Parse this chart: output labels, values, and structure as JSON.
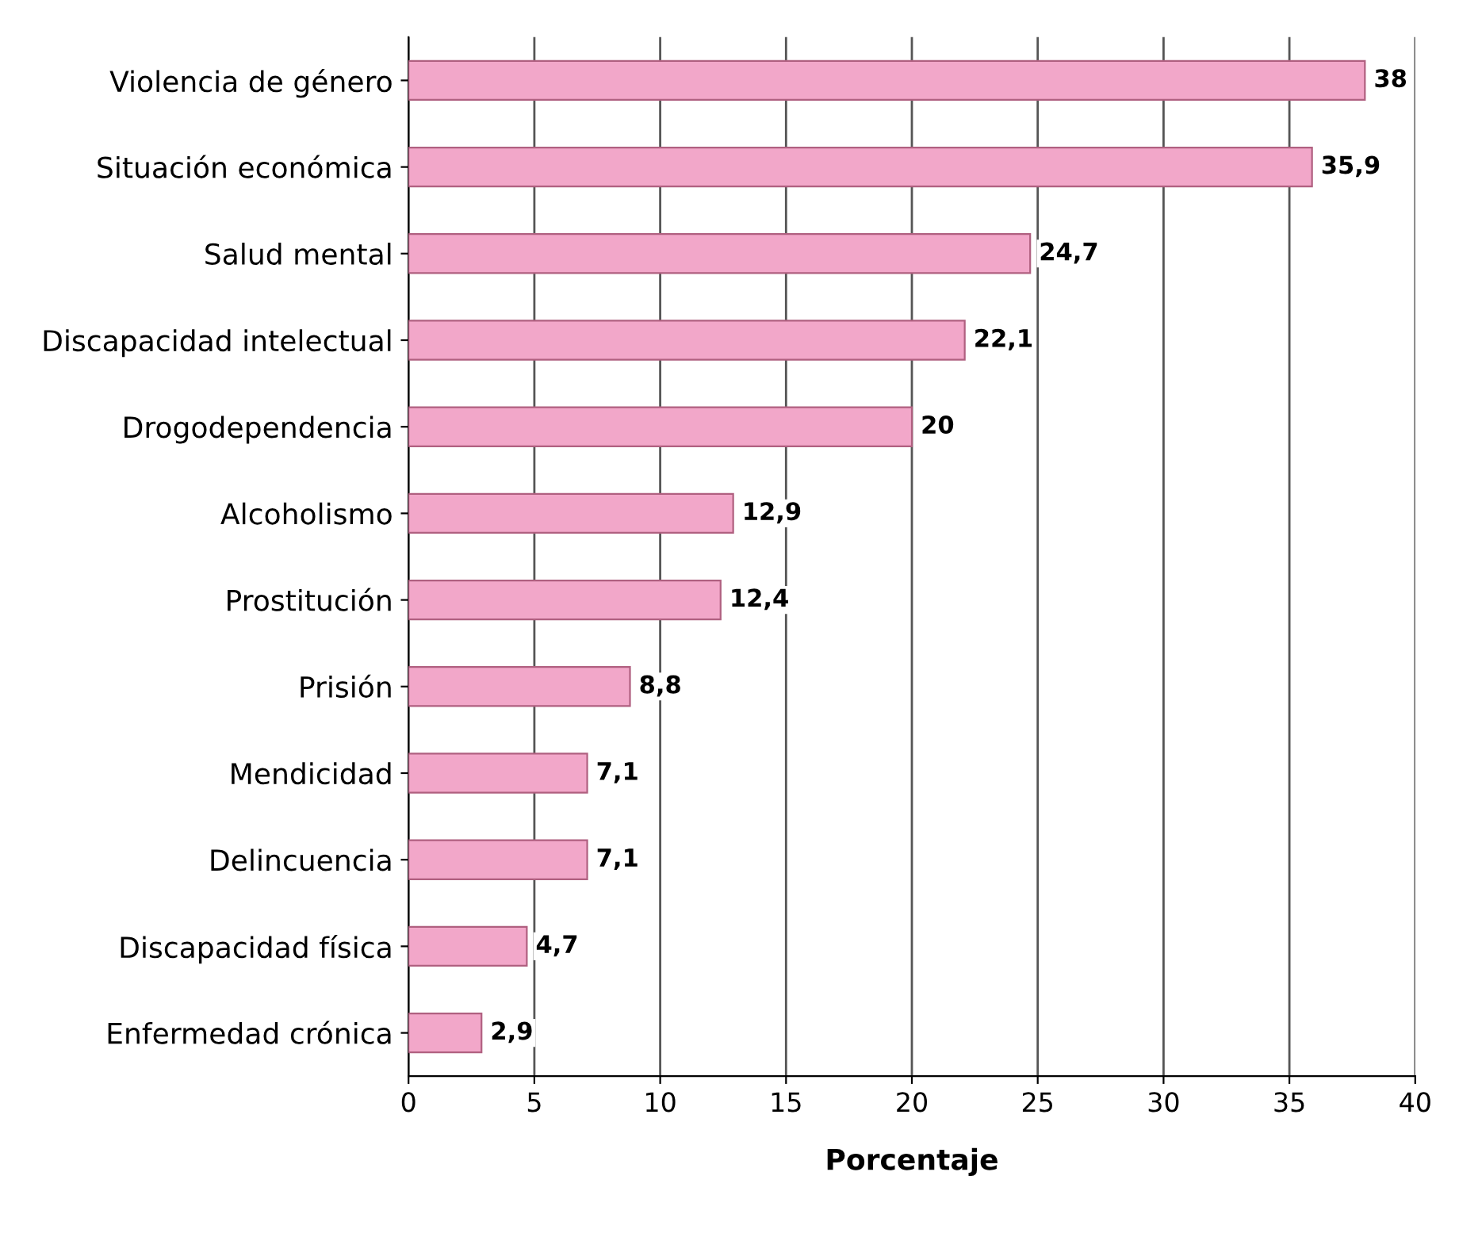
{
  "chart_data": {
    "type": "bar",
    "orientation": "horizontal",
    "xlabel": "Porcentaje",
    "categories": [
      "Violencia de género",
      "Situación económica",
      "Salud mental",
      "Discapacidad intelectual",
      "Drogodependencia",
      "Alcoholismo",
      "Prostitución",
      "Prisión",
      "Mendicidad",
      "Delincuencia",
      "Discapacidad física",
      "Enfermedad crónica"
    ],
    "values": [
      38,
      35.9,
      24.7,
      22.1,
      20,
      12.9,
      12.4,
      8.8,
      7.1,
      7.1,
      4.7,
      2.9
    ],
    "value_labels": [
      "38",
      "35,9",
      "24,7",
      "22,1",
      "20",
      "12,9",
      "12,4",
      "8,8",
      "7,1",
      "7,1",
      "4,7",
      "2,9"
    ],
    "color": "#f2a7c9",
    "xlim": [
      0,
      40
    ],
    "xticks": [
      0,
      5,
      10,
      15,
      20,
      25,
      30,
      35,
      40
    ],
    "grid": "x",
    "legend": false
  }
}
